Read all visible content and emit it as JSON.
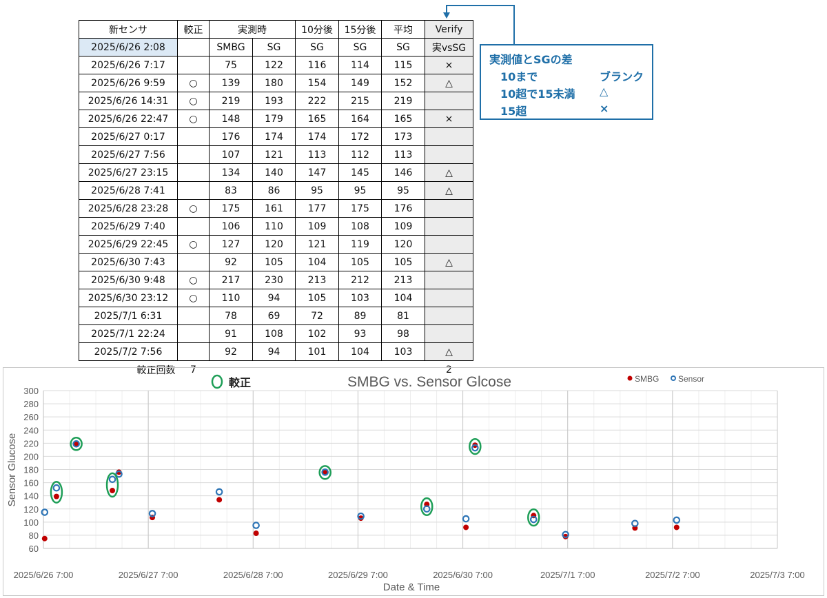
{
  "table": {
    "headers": {
      "col1": "新センサ",
      "col2": "較正",
      "col3": "実測時",
      "col4": "10分後",
      "col5": "15分後",
      "col6": "平均",
      "col7": "Verify"
    },
    "subheaders": {
      "date": "2025/6/26 2:08",
      "smbg": "SMBG",
      "sg": "SG",
      "sg10": "SG",
      "sg15": "SG",
      "avg": "SG",
      "verify": "実vsSG"
    },
    "rows": [
      {
        "date": "2025/6/26 7:17",
        "cal": "",
        "smbg": "75",
        "sg": "122",
        "sg10": "116",
        "sg15": "114",
        "avg": "115",
        "verify": "×"
      },
      {
        "date": "2025/6/26 9:59",
        "cal": "○",
        "smbg": "139",
        "sg": "180",
        "sg10": "154",
        "sg15": "149",
        "avg": "152",
        "verify": "△"
      },
      {
        "date": "2025/6/26 14:31",
        "cal": "○",
        "smbg": "219",
        "sg": "193",
        "sg10": "222",
        "sg15": "215",
        "avg": "219",
        "verify": ""
      },
      {
        "date": "2025/6/26 22:47",
        "cal": "○",
        "smbg": "148",
        "sg": "179",
        "sg10": "165",
        "sg15": "164",
        "avg": "165",
        "verify": "×"
      },
      {
        "date": "2025/6/27 0:17",
        "cal": "",
        "smbg": "176",
        "sg": "174",
        "sg10": "174",
        "sg15": "172",
        "avg": "173",
        "verify": ""
      },
      {
        "date": "2025/6/27 7:56",
        "cal": "",
        "smbg": "107",
        "sg": "121",
        "sg10": "113",
        "sg15": "112",
        "avg": "113",
        "verify": ""
      },
      {
        "date": "2025/6/27 23:15",
        "cal": "",
        "smbg": "134",
        "sg": "140",
        "sg10": "147",
        "sg15": "145",
        "avg": "146",
        "verify": "△"
      },
      {
        "date": "2025/6/28 7:41",
        "cal": "",
        "smbg": "83",
        "sg": "86",
        "sg10": "95",
        "sg15": "95",
        "avg": "95",
        "verify": "△"
      },
      {
        "date": "2025/6/28 23:28",
        "cal": "○",
        "smbg": "175",
        "sg": "161",
        "sg10": "177",
        "sg15": "175",
        "avg": "176",
        "verify": ""
      },
      {
        "date": "2025/6/29 7:40",
        "cal": "",
        "smbg": "106",
        "sg": "110",
        "sg10": "109",
        "sg15": "108",
        "avg": "109",
        "verify": ""
      },
      {
        "date": "2025/6/29 22:45",
        "cal": "○",
        "smbg": "127",
        "sg": "120",
        "sg10": "121",
        "sg15": "119",
        "avg": "120",
        "verify": ""
      },
      {
        "date": "2025/6/30 7:43",
        "cal": "",
        "smbg": "92",
        "sg": "105",
        "sg10": "104",
        "sg15": "105",
        "avg": "105",
        "verify": "△"
      },
      {
        "date": "2025/6/30 9:48",
        "cal": "○",
        "smbg": "217",
        "sg": "230",
        "sg10": "213",
        "sg15": "212",
        "avg": "213",
        "verify": ""
      },
      {
        "date": "2025/6/30 23:12",
        "cal": "○",
        "smbg": "110",
        "sg": "94",
        "sg10": "105",
        "sg15": "103",
        "avg": "104",
        "verify": ""
      },
      {
        "date": "2025/7/1 6:31",
        "cal": "",
        "smbg": "78",
        "sg": "69",
        "sg10": "72",
        "sg15": "89",
        "avg": "81",
        "verify": ""
      },
      {
        "date": "2025/7/1 22:24",
        "cal": "",
        "smbg": "91",
        "sg": "108",
        "sg10": "102",
        "sg15": "93",
        "avg": "98",
        "verify": ""
      },
      {
        "date": "2025/7/2 7:56",
        "cal": "",
        "smbg": "92",
        "sg": "94",
        "sg10": "101",
        "sg15": "104",
        "avg": "103",
        "verify": "△"
      }
    ],
    "footer": {
      "label": "較正回数",
      "cal_count": "7",
      "verify_count": "2"
    }
  },
  "note": {
    "title": "実測値とSGの差",
    "lines": [
      {
        "range": "10まで",
        "mark": "ブランク"
      },
      {
        "range": "10超で15未満",
        "mark": "△"
      },
      {
        "range": "15超",
        "mark": "×"
      }
    ]
  },
  "chart_data": {
    "type": "scatter",
    "title": "SMBG vs. Sensor Glcose",
    "xlabel": "Date & Time",
    "ylabel": "Sensor Glucose",
    "ylim": [
      60,
      300
    ],
    "yticks": [
      60,
      80,
      100,
      120,
      140,
      160,
      180,
      200,
      220,
      240,
      260,
      280,
      300
    ],
    "xlim": [
      "2025/6/26 7:00",
      "2025/7/3 7:00"
    ],
    "xticks": [
      "2025/6/26 7:00",
      "2025/6/27 7:00",
      "2025/6/28 7:00",
      "2025/6/29 7:00",
      "2025/6/30 7:00",
      "2025/7/1 7:00",
      "2025/7/2 7:00",
      "2025/7/3 7:00"
    ],
    "grid": true,
    "legend_position": "top-right",
    "calibration_legend": "較正",
    "series": [
      {
        "name": "SMBG",
        "color": "#c00000",
        "marker": "filled-circle",
        "points": [
          {
            "x": "2025/6/26 7:17",
            "y": 75
          },
          {
            "x": "2025/6/26 9:59",
            "y": 139
          },
          {
            "x": "2025/6/26 14:31",
            "y": 219
          },
          {
            "x": "2025/6/26 22:47",
            "y": 148
          },
          {
            "x": "2025/6/27 0:17",
            "y": 176
          },
          {
            "x": "2025/6/27 7:56",
            "y": 107
          },
          {
            "x": "2025/6/27 23:15",
            "y": 134
          },
          {
            "x": "2025/6/28 7:41",
            "y": 83
          },
          {
            "x": "2025/6/28 23:28",
            "y": 175
          },
          {
            "x": "2025/6/29 7:40",
            "y": 106
          },
          {
            "x": "2025/6/29 22:45",
            "y": 127
          },
          {
            "x": "2025/6/30 7:43",
            "y": 92
          },
          {
            "x": "2025/6/30 9:48",
            "y": 217
          },
          {
            "x": "2025/6/30 23:12",
            "y": 110
          },
          {
            "x": "2025/7/1 6:31",
            "y": 78
          },
          {
            "x": "2025/7/1 22:24",
            "y": 91
          },
          {
            "x": "2025/7/2 7:56",
            "y": 92
          }
        ]
      },
      {
        "name": "Sensor",
        "color": "#2e75b6",
        "marker": "open-circle",
        "points": [
          {
            "x": "2025/6/26 7:17",
            "y": 115
          },
          {
            "x": "2025/6/26 9:59",
            "y": 152
          },
          {
            "x": "2025/6/26 14:31",
            "y": 219
          },
          {
            "x": "2025/6/26 22:47",
            "y": 165
          },
          {
            "x": "2025/6/27 0:17",
            "y": 173
          },
          {
            "x": "2025/6/27 7:56",
            "y": 113
          },
          {
            "x": "2025/6/27 23:15",
            "y": 146
          },
          {
            "x": "2025/6/28 7:41",
            "y": 95
          },
          {
            "x": "2025/6/28 23:28",
            "y": 176
          },
          {
            "x": "2025/6/29 7:40",
            "y": 109
          },
          {
            "x": "2025/6/29 22:45",
            "y": 120
          },
          {
            "x": "2025/6/30 7:43",
            "y": 105
          },
          {
            "x": "2025/6/30 9:48",
            "y": 213
          },
          {
            "x": "2025/6/30 23:12",
            "y": 104
          },
          {
            "x": "2025/7/1 6:31",
            "y": 81
          },
          {
            "x": "2025/7/1 22:24",
            "y": 98
          },
          {
            "x": "2025/7/2 7:56",
            "y": 103
          }
        ]
      }
    ],
    "calibrations": [
      "2025/6/26 9:59",
      "2025/6/26 14:31",
      "2025/6/26 22:47",
      "2025/6/28 23:28",
      "2025/6/29 22:45",
      "2025/6/30 9:48",
      "2025/6/30 23:12"
    ],
    "colors": {
      "calibration_ring": "#1e9e57",
      "grid": "#d9d9d9",
      "title": "#595959"
    }
  }
}
